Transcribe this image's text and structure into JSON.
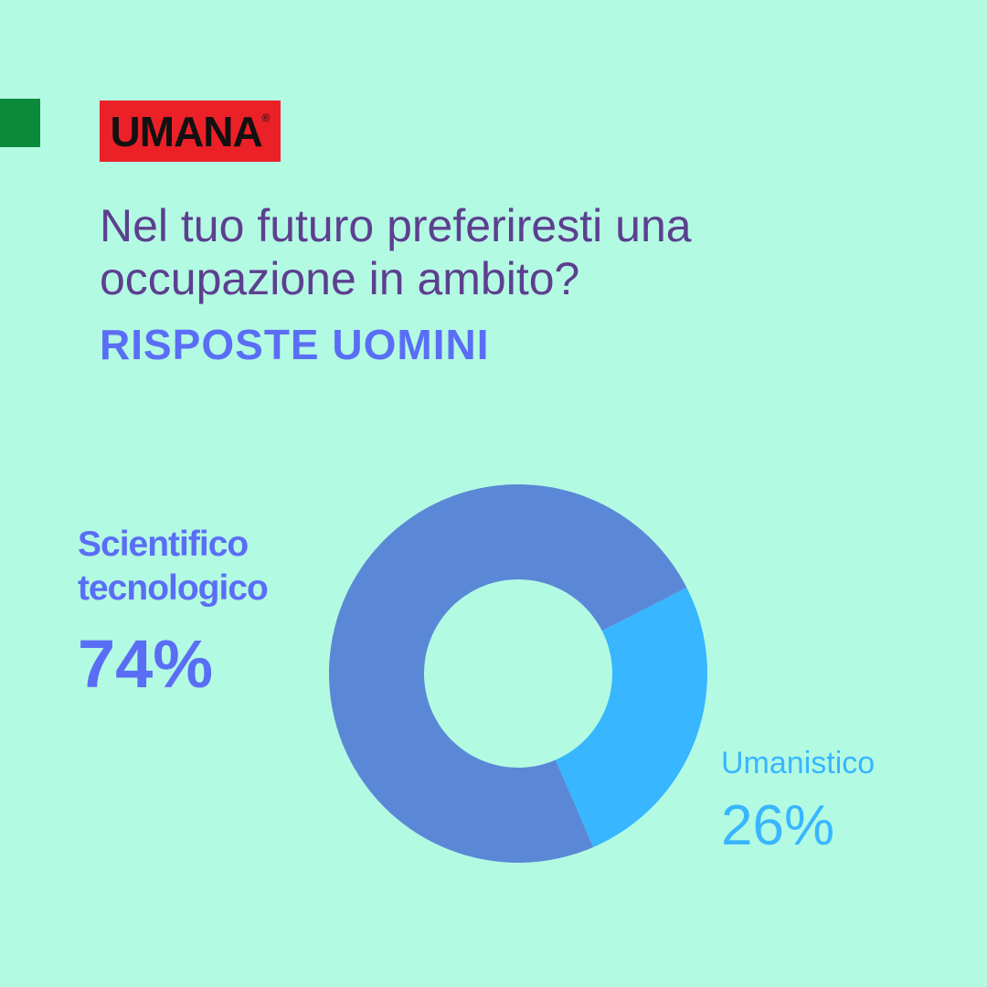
{
  "logo": "UMANA",
  "logo_mark": "®",
  "chart_data": {
    "type": "pie",
    "donut": true,
    "title": "Nel tuo futuro preferiresti una occupazione in ambito?",
    "subtitle": "RISPOSTE UOMINI",
    "categories": [
      "Scientifico tecnologico",
      "Umanistico"
    ],
    "values": [
      74,
      26
    ],
    "value_labels": [
      "74%",
      "26%"
    ],
    "colors": [
      "#5b88d6",
      "#38b6ff"
    ]
  }
}
